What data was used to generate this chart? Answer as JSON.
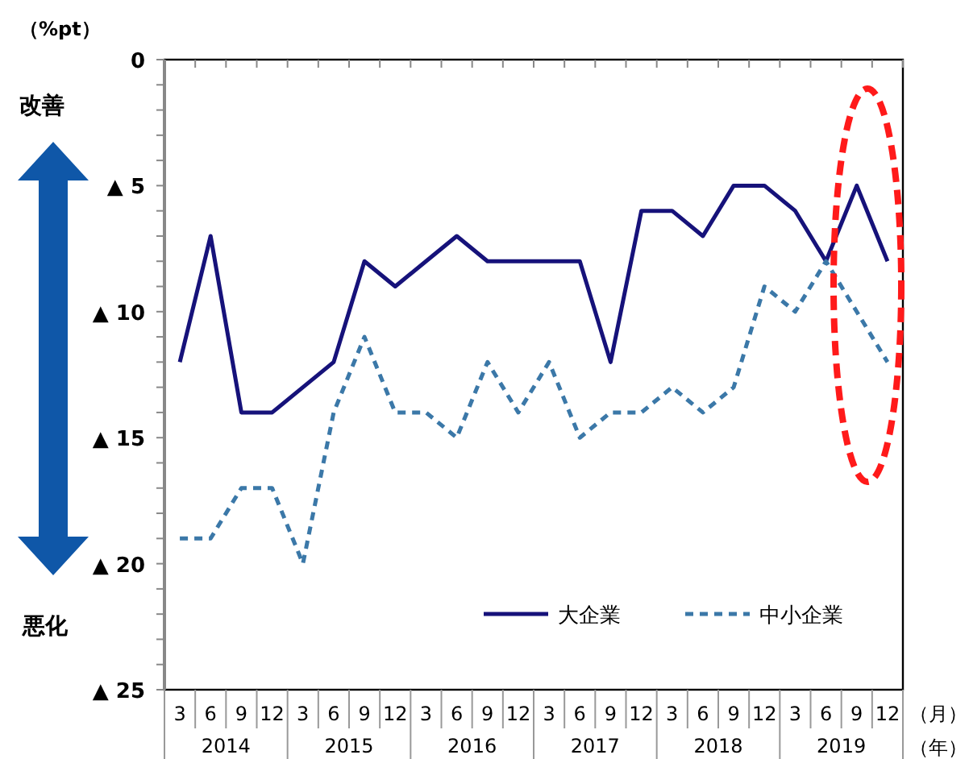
{
  "chart_data": {
    "type": "line",
    "ylabel": "（%pt）",
    "categories": [
      "3",
      "6",
      "9",
      "12",
      "3",
      "6",
      "9",
      "12",
      "3",
      "6",
      "9",
      "12",
      "3",
      "6",
      "9",
      "12",
      "3",
      "6",
      "9",
      "12",
      "3",
      "6",
      "9",
      "12"
    ],
    "series": [
      {
        "name": "大企業",
        "color": "#16127a",
        "line_style": "solid",
        "values": [
          -12,
          -7,
          -14,
          -14,
          -13,
          -12,
          -8,
          -9,
          -8,
          -7,
          -8,
          -8,
          -8,
          -8,
          -12,
          -6,
          -6,
          -7,
          -5,
          -5,
          -6,
          -8,
          -5,
          -8
        ]
      },
      {
        "name": "中小企業",
        "color": "#3b78a8",
        "line_style": "dashed",
        "values": [
          -19,
          -19,
          -17,
          -17,
          -20,
          -14,
          -11,
          -14,
          -14,
          -15,
          -12,
          -14,
          -12,
          -15,
          -14,
          -14,
          -13,
          -14,
          -13,
          -9,
          -10,
          -8,
          -10,
          -12
        ]
      }
    ],
    "ylim": [
      -25,
      0
    ],
    "yticks": [
      {
        "value": -25,
        "label": "▲ 25"
      },
      {
        "value": -20,
        "label": "▲ 20"
      },
      {
        "value": -15,
        "label": "▲ 15"
      },
      {
        "value": -10,
        "label": "▲ 10"
      },
      {
        "value": -5,
        "label": "▲ 5"
      },
      0
    ],
    "legend": "bottom right",
    "grid": false,
    "marker": "none",
    "annotations": [
      "2014",
      "2015",
      "2016",
      "2017",
      "2018",
      "2019",
      "（月）",
      "（年）",
      "改善",
      "悪化"
    ]
  }
}
